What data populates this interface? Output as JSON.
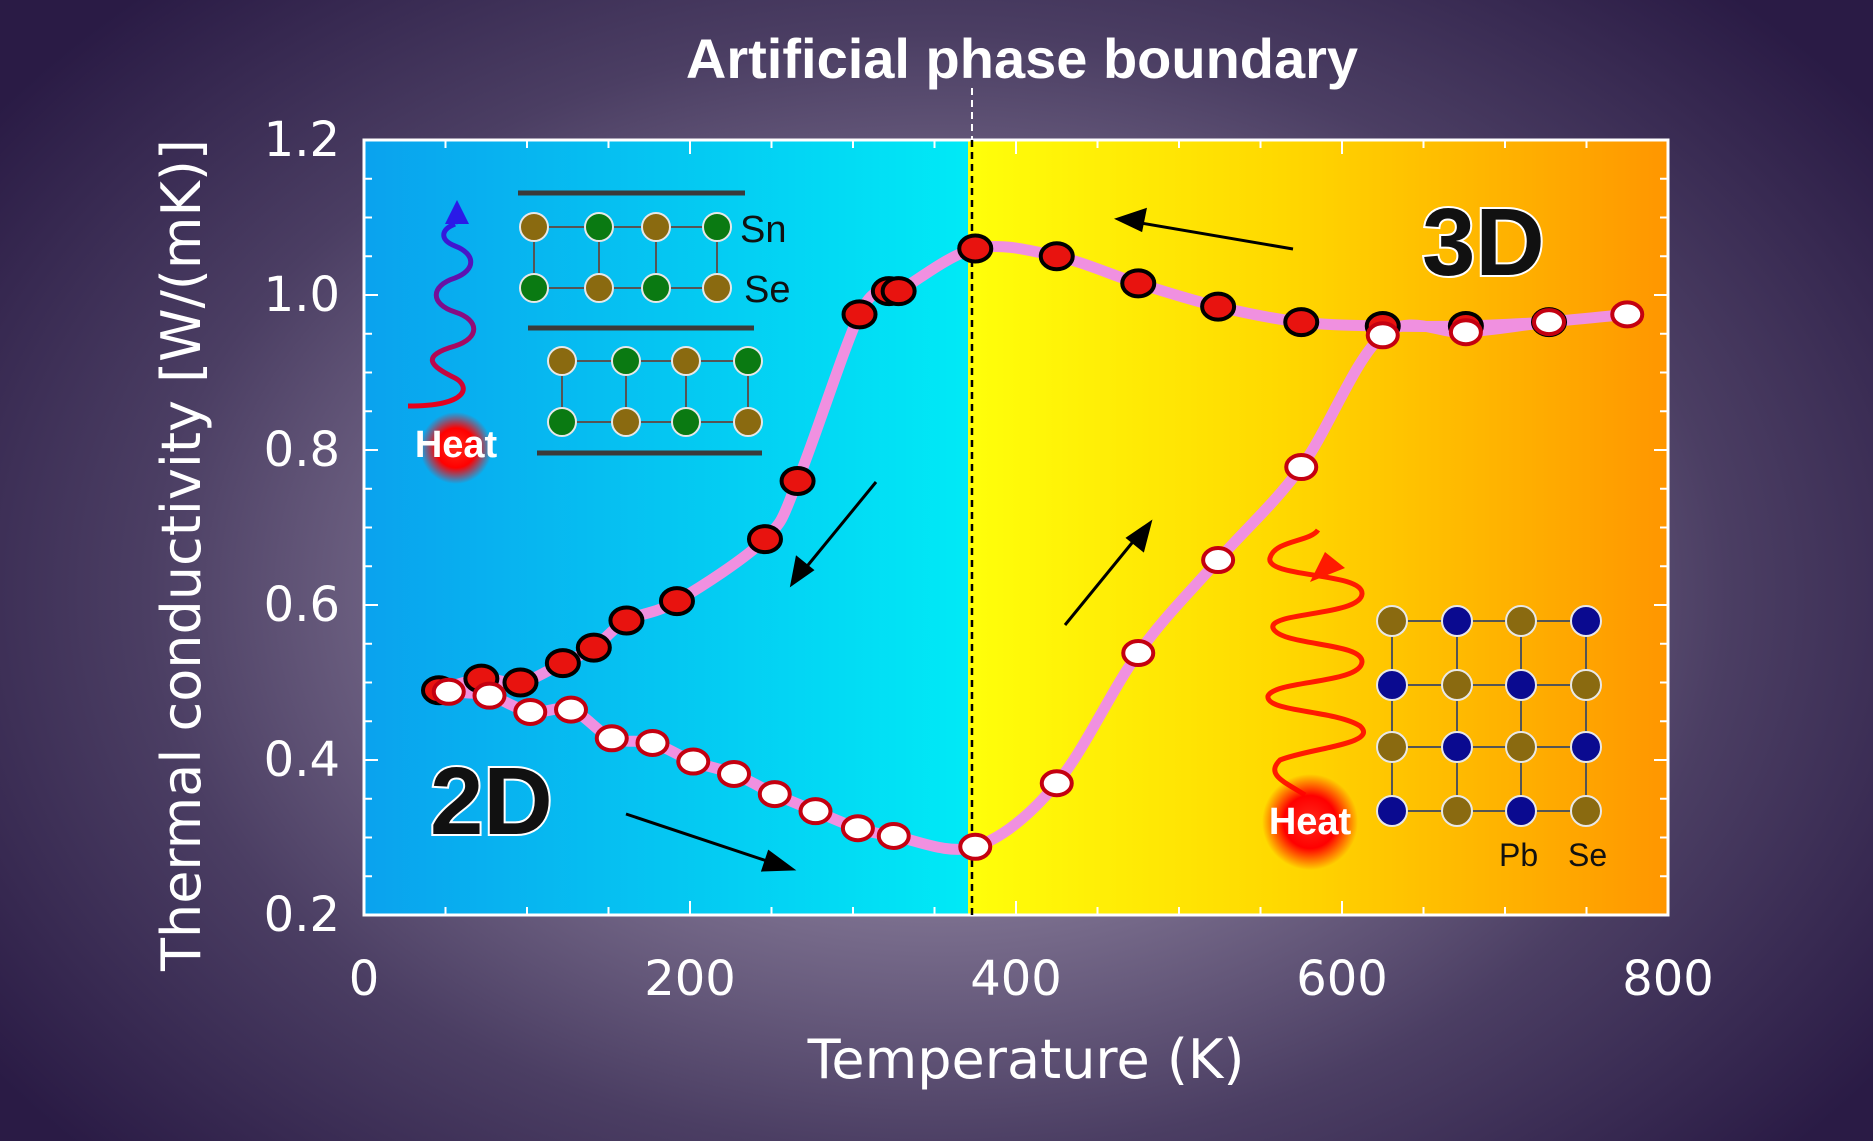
{
  "chart_data": {
    "type": "scatter",
    "title": "Artificial phase boundary",
    "xlabel": "Temperature (K)",
    "ylabel": "Thermal conductivity  [W/(mK)]",
    "xlim": [
      0,
      800
    ],
    "ylim": [
      0.2,
      1.2
    ],
    "xticks": [
      "0",
      "200",
      "400",
      "600",
      "800"
    ],
    "yticks": [
      "0.2",
      "0.4",
      "0.6",
      "0.8",
      "1.0",
      "1.2"
    ],
    "boundary_x": 373,
    "background": {
      "left_region": "blue",
      "right_region": "yellow-orange"
    },
    "series": [
      {
        "marker": "filled-red",
        "x": [
          46,
          72,
          96,
          122,
          141,
          161,
          192,
          246,
          266,
          304,
          322,
          328,
          375,
          425,
          475,
          524,
          575,
          625,
          676,
          727
        ],
        "y": [
          0.49,
          0.505,
          0.5,
          0.525,
          0.545,
          0.58,
          0.605,
          0.685,
          0.76,
          0.975,
          1.005,
          1.005,
          1.06,
          1.05,
          1.015,
          0.985,
          0.965,
          0.96,
          0.96,
          0.965
        ]
      },
      {
        "marker": "open-white",
        "x": [
          52,
          77,
          102,
          127,
          152,
          177,
          202,
          227,
          252,
          277,
          303,
          325,
          375,
          425,
          475,
          524,
          575,
          625,
          676,
          727,
          775
        ],
        "y": [
          0.488,
          0.483,
          0.462,
          0.465,
          0.428,
          0.422,
          0.398,
          0.382,
          0.356,
          0.334,
          0.312,
          0.302,
          0.288,
          0.37,
          0.538,
          0.658,
          0.778,
          0.948,
          0.952,
          0.965,
          0.975
        ]
      }
    ],
    "annotations": {
      "label_2d": "2D",
      "label_3d": "3D",
      "heat_left": "Heat",
      "heat_right": "Heat",
      "sn": "Sn",
      "se_left": "Se",
      "pb": "Pb",
      "se_right": "Se"
    }
  }
}
